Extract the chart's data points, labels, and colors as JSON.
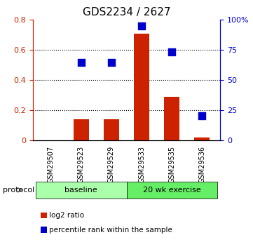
{
  "title": "GDS2234 / 2627",
  "samples": [
    "GSM29507",
    "GSM29523",
    "GSM29529",
    "GSM29533",
    "GSM29535",
    "GSM29536"
  ],
  "log2_ratio": [
    0.0,
    0.14,
    0.14,
    0.705,
    0.29,
    0.018
  ],
  "percentile_rank": [
    null,
    0.645,
    0.645,
    0.945,
    0.73,
    0.205
  ],
  "bar_color": "#cc2200",
  "dot_color": "#0000cc",
  "left_ylim": [
    0,
    0.8
  ],
  "right_ylim": [
    0,
    1.0
  ],
  "left_yticks": [
    0,
    0.2,
    0.4,
    0.6,
    0.8
  ],
  "right_yticks": [
    0,
    0.25,
    0.5,
    0.75,
    1.0
  ],
  "right_yticklabels": [
    "0",
    "25",
    "50",
    "75",
    "100%"
  ],
  "left_yticklabels": [
    "0",
    "0.2",
    "0.4",
    "0.6",
    "0.8"
  ],
  "groups": [
    {
      "label": "baseline",
      "samples": [
        "GSM29507",
        "GSM29523",
        "GSM29529"
      ],
      "color": "#aaffaa"
    },
    {
      "label": "20 wk exercise",
      "samples": [
        "GSM29533",
        "GSM29535",
        "GSM29536"
      ],
      "color": "#66ff66"
    }
  ],
  "protocol_label": "protocol",
  "legend_items": [
    {
      "label": "log2 ratio",
      "color": "#cc2200",
      "marker": "s"
    },
    {
      "label": "percentile rank within the sample",
      "color": "#0000cc",
      "marker": "s"
    }
  ],
  "grid_color": "#000000",
  "background_color": "#ffffff",
  "xticklabel_color": "#000000",
  "left_axis_color": "#cc2200",
  "right_axis_color": "#0000cc",
  "bar_width": 0.5,
  "dot_size": 60,
  "figsize": [
    3.61,
    3.45
  ],
  "dpi": 100
}
